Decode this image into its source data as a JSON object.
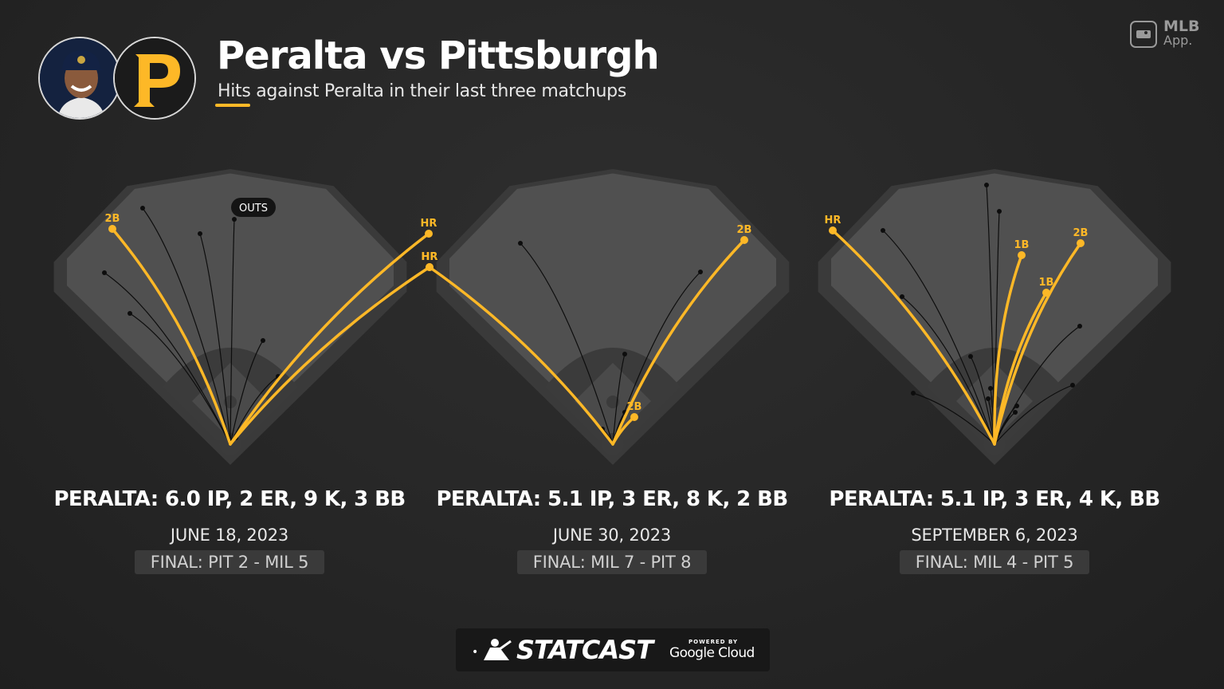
{
  "header": {
    "title": "Peralta vs Pittsburgh",
    "subtitle": "Hits against Peralta in their last three matchups",
    "mlb_app_top": "MLB",
    "mlb_app_bottom": "App.",
    "player_icon": "player-headshot",
    "team_icon": "pirates-p-logo"
  },
  "colors": {
    "hit": "#fdb827",
    "out": "#0d0d0d",
    "field_outer": "#3a3a3a",
    "field_inner": "#505050",
    "infield": "#3b3b3b",
    "background": "#262626"
  },
  "legend_badge": "OUTS",
  "chart_data": [
    {
      "type": "scatter",
      "title": "PERALTA: 6.0 IP, 2 ER, 9 K, 3 BB",
      "date": "JUNE 18, 2023",
      "final": "FINAL: PIT 2 - MIL 5",
      "hits": [
        {
          "label": "2B",
          "x": -148,
          "y": 270
        },
        {
          "label": "HR",
          "x": 249,
          "y": 264
        },
        {
          "label": "HR",
          "x": 250,
          "y": 222
        }
      ],
      "outs": [
        {
          "x": -110,
          "y": 296
        },
        {
          "x": -158,
          "y": 215
        },
        {
          "x": -126,
          "y": 164
        },
        {
          "x": -38,
          "y": 264
        },
        {
          "x": 5,
          "y": 282
        },
        {
          "x": 41,
          "y": 130
        },
        {
          "x": 60,
          "y": 85
        },
        {
          "x": 7,
          "y": 8
        }
      ]
    },
    {
      "type": "scatter",
      "title": "PERALTA: 5.1 IP, 3 ER, 8 K, 2 BB",
      "date": "JUNE 30, 2023",
      "final": "FINAL: MIL 7 - PIT 8",
      "hits": [
        {
          "label": "HR",
          "x": -230,
          "y": 222
        },
        {
          "label": "2B",
          "x": 165,
          "y": 256
        },
        {
          "label": "2B",
          "x": 27,
          "y": 34
        }
      ],
      "outs": [
        {
          "x": -116,
          "y": 252
        },
        {
          "x": 110,
          "y": 216
        },
        {
          "x": 15,
          "y": 113
        },
        {
          "x": 15,
          "y": 40
        },
        {
          "x": -13,
          "y": 19
        }
      ]
    },
    {
      "type": "scatter",
      "title": "PERALTA: 5.1 IP, 3 ER, 4 K, BB",
      "date": "SEPTEMBER 6, 2023",
      "final": "FINAL: MIL 4 - PIT 5",
      "hits": [
        {
          "label": "HR",
          "x": -203,
          "y": 268
        },
        {
          "label": "1B",
          "x": 34,
          "y": 237
        },
        {
          "label": "2B",
          "x": 108,
          "y": 252
        },
        {
          "label": "1B",
          "x": 65,
          "y": 190
        }
      ],
      "outs": [
        {
          "x": -10,
          "y": 325
        },
        {
          "x": 6,
          "y": 292
        },
        {
          "x": -140,
          "y": 268
        },
        {
          "x": -116,
          "y": 185
        },
        {
          "x": 107,
          "y": 148
        },
        {
          "x": -30,
          "y": 110
        },
        {
          "x": 98,
          "y": 74
        },
        {
          "x": -102,
          "y": 64
        },
        {
          "x": -5,
          "y": 70
        },
        {
          "x": 28,
          "y": 48
        },
        {
          "x": 26,
          "y": 40
        },
        {
          "x": -8,
          "y": 57
        }
      ]
    }
  ],
  "footer": {
    "statcast": "STATCAST",
    "powered_by": "POWERED BY",
    "google_cloud": "Google Cloud"
  }
}
